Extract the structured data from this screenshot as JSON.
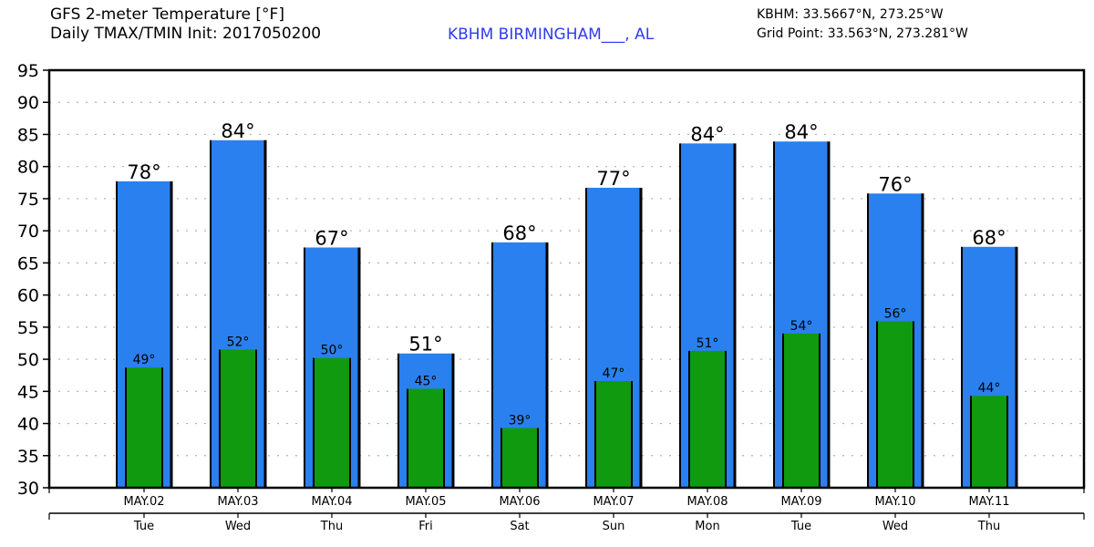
{
  "header": {
    "title_line1": "GFS 2-meter Temperature [°F]",
    "title_line2": "Daily TMAX/TMIN Init: 2017050200",
    "station": "KBHM BIRMINGHAM___, AL",
    "station_coords": "KBHM: 33.5667°N, 273.25°W",
    "grid_point": "Grid Point: 33.563°N, 273.281°W"
  },
  "colors": {
    "tmax": "#2a80ee",
    "tmin": "#109a10",
    "station_text": "#2f3cf0",
    "grid": "#b0b0b0"
  },
  "chart_data": {
    "type": "bar",
    "title": "GFS 2-meter Temperature [°F] Daily TMAX/TMIN",
    "xlabel": "",
    "ylabel": "",
    "ylim": [
      30,
      95
    ],
    "yticks": [
      30,
      35,
      40,
      45,
      50,
      55,
      60,
      65,
      70,
      75,
      80,
      85,
      90,
      95
    ],
    "grid": true,
    "categories": [
      "MAY.02",
      "MAY.03",
      "MAY.04",
      "MAY.05",
      "MAY.06",
      "MAY.07",
      "MAY.08",
      "MAY.09",
      "MAY.10",
      "MAY.11"
    ],
    "weekdays": [
      "Tue",
      "Wed",
      "Thu",
      "Fri",
      "Sat",
      "Sun",
      "Mon",
      "Tue",
      "Wed",
      "Thu"
    ],
    "series": [
      {
        "name": "TMAX",
        "values": [
          77.7,
          84.1,
          67.4,
          50.9,
          68.2,
          76.7,
          83.6,
          83.9,
          75.8,
          67.5
        ],
        "labels": [
          "78°",
          "84°",
          "67°",
          "51°",
          "68°",
          "77°",
          "84°",
          "84°",
          "76°",
          "68°"
        ]
      },
      {
        "name": "TMIN",
        "values": [
          48.7,
          51.5,
          50.2,
          45.4,
          39.3,
          46.6,
          51.3,
          54.0,
          55.9,
          44.3
        ],
        "labels": [
          "49°",
          "52°",
          "50°",
          "45°",
          "39°",
          "47°",
          "51°",
          "54°",
          "56°",
          "44°"
        ]
      }
    ]
  }
}
